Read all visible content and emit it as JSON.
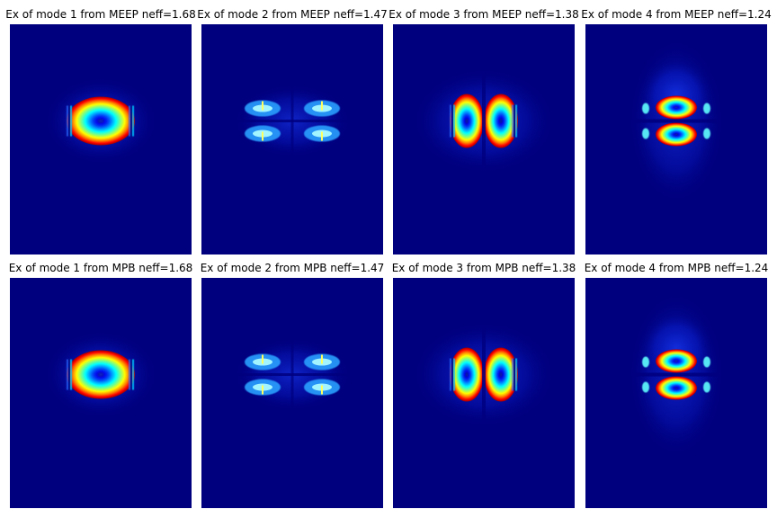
{
  "figure": {
    "background": "#ffffff",
    "field_background": "#00007f",
    "colormap": "jet"
  },
  "chart_data": [
    {
      "type": "heatmap",
      "title": "Ex of mode 1 from MEEP neff=1.68",
      "source": "MEEP",
      "mode": 1,
      "neff": 1.68,
      "pattern": "fundamental"
    },
    {
      "type": "heatmap",
      "title": "Ex of mode 2 from MEEP neff=1.47",
      "source": "MEEP",
      "mode": 2,
      "neff": 1.47,
      "pattern": "quad"
    },
    {
      "type": "heatmap",
      "title": "Ex of mode 3 from MEEP neff=1.38",
      "source": "MEEP",
      "mode": 3,
      "neff": 1.38,
      "pattern": "horizontal-pair"
    },
    {
      "type": "heatmap",
      "title": "Ex of mode 4 from MEEP neff=1.24",
      "source": "MEEP",
      "mode": 4,
      "neff": 1.24,
      "pattern": "vertical-pair"
    },
    {
      "type": "heatmap",
      "title": "Ex of mode 1 from MPB neff=1.68",
      "source": "MPB",
      "mode": 1,
      "neff": 1.68,
      "pattern": "fundamental"
    },
    {
      "type": "heatmap",
      "title": "Ex of mode 2 from MPB neff=1.47",
      "source": "MPB",
      "mode": 2,
      "neff": 1.47,
      "pattern": "quad"
    },
    {
      "type": "heatmap",
      "title": "Ex of mode 3 from MPB neff=1.38",
      "source": "MPB",
      "mode": 3,
      "neff": 1.38,
      "pattern": "horizontal-pair"
    },
    {
      "type": "heatmap",
      "title": "Ex of mode 4 from MPB neff=1.24",
      "source": "MPB",
      "mode": 4,
      "neff": 1.24,
      "pattern": "vertical-pair"
    }
  ]
}
